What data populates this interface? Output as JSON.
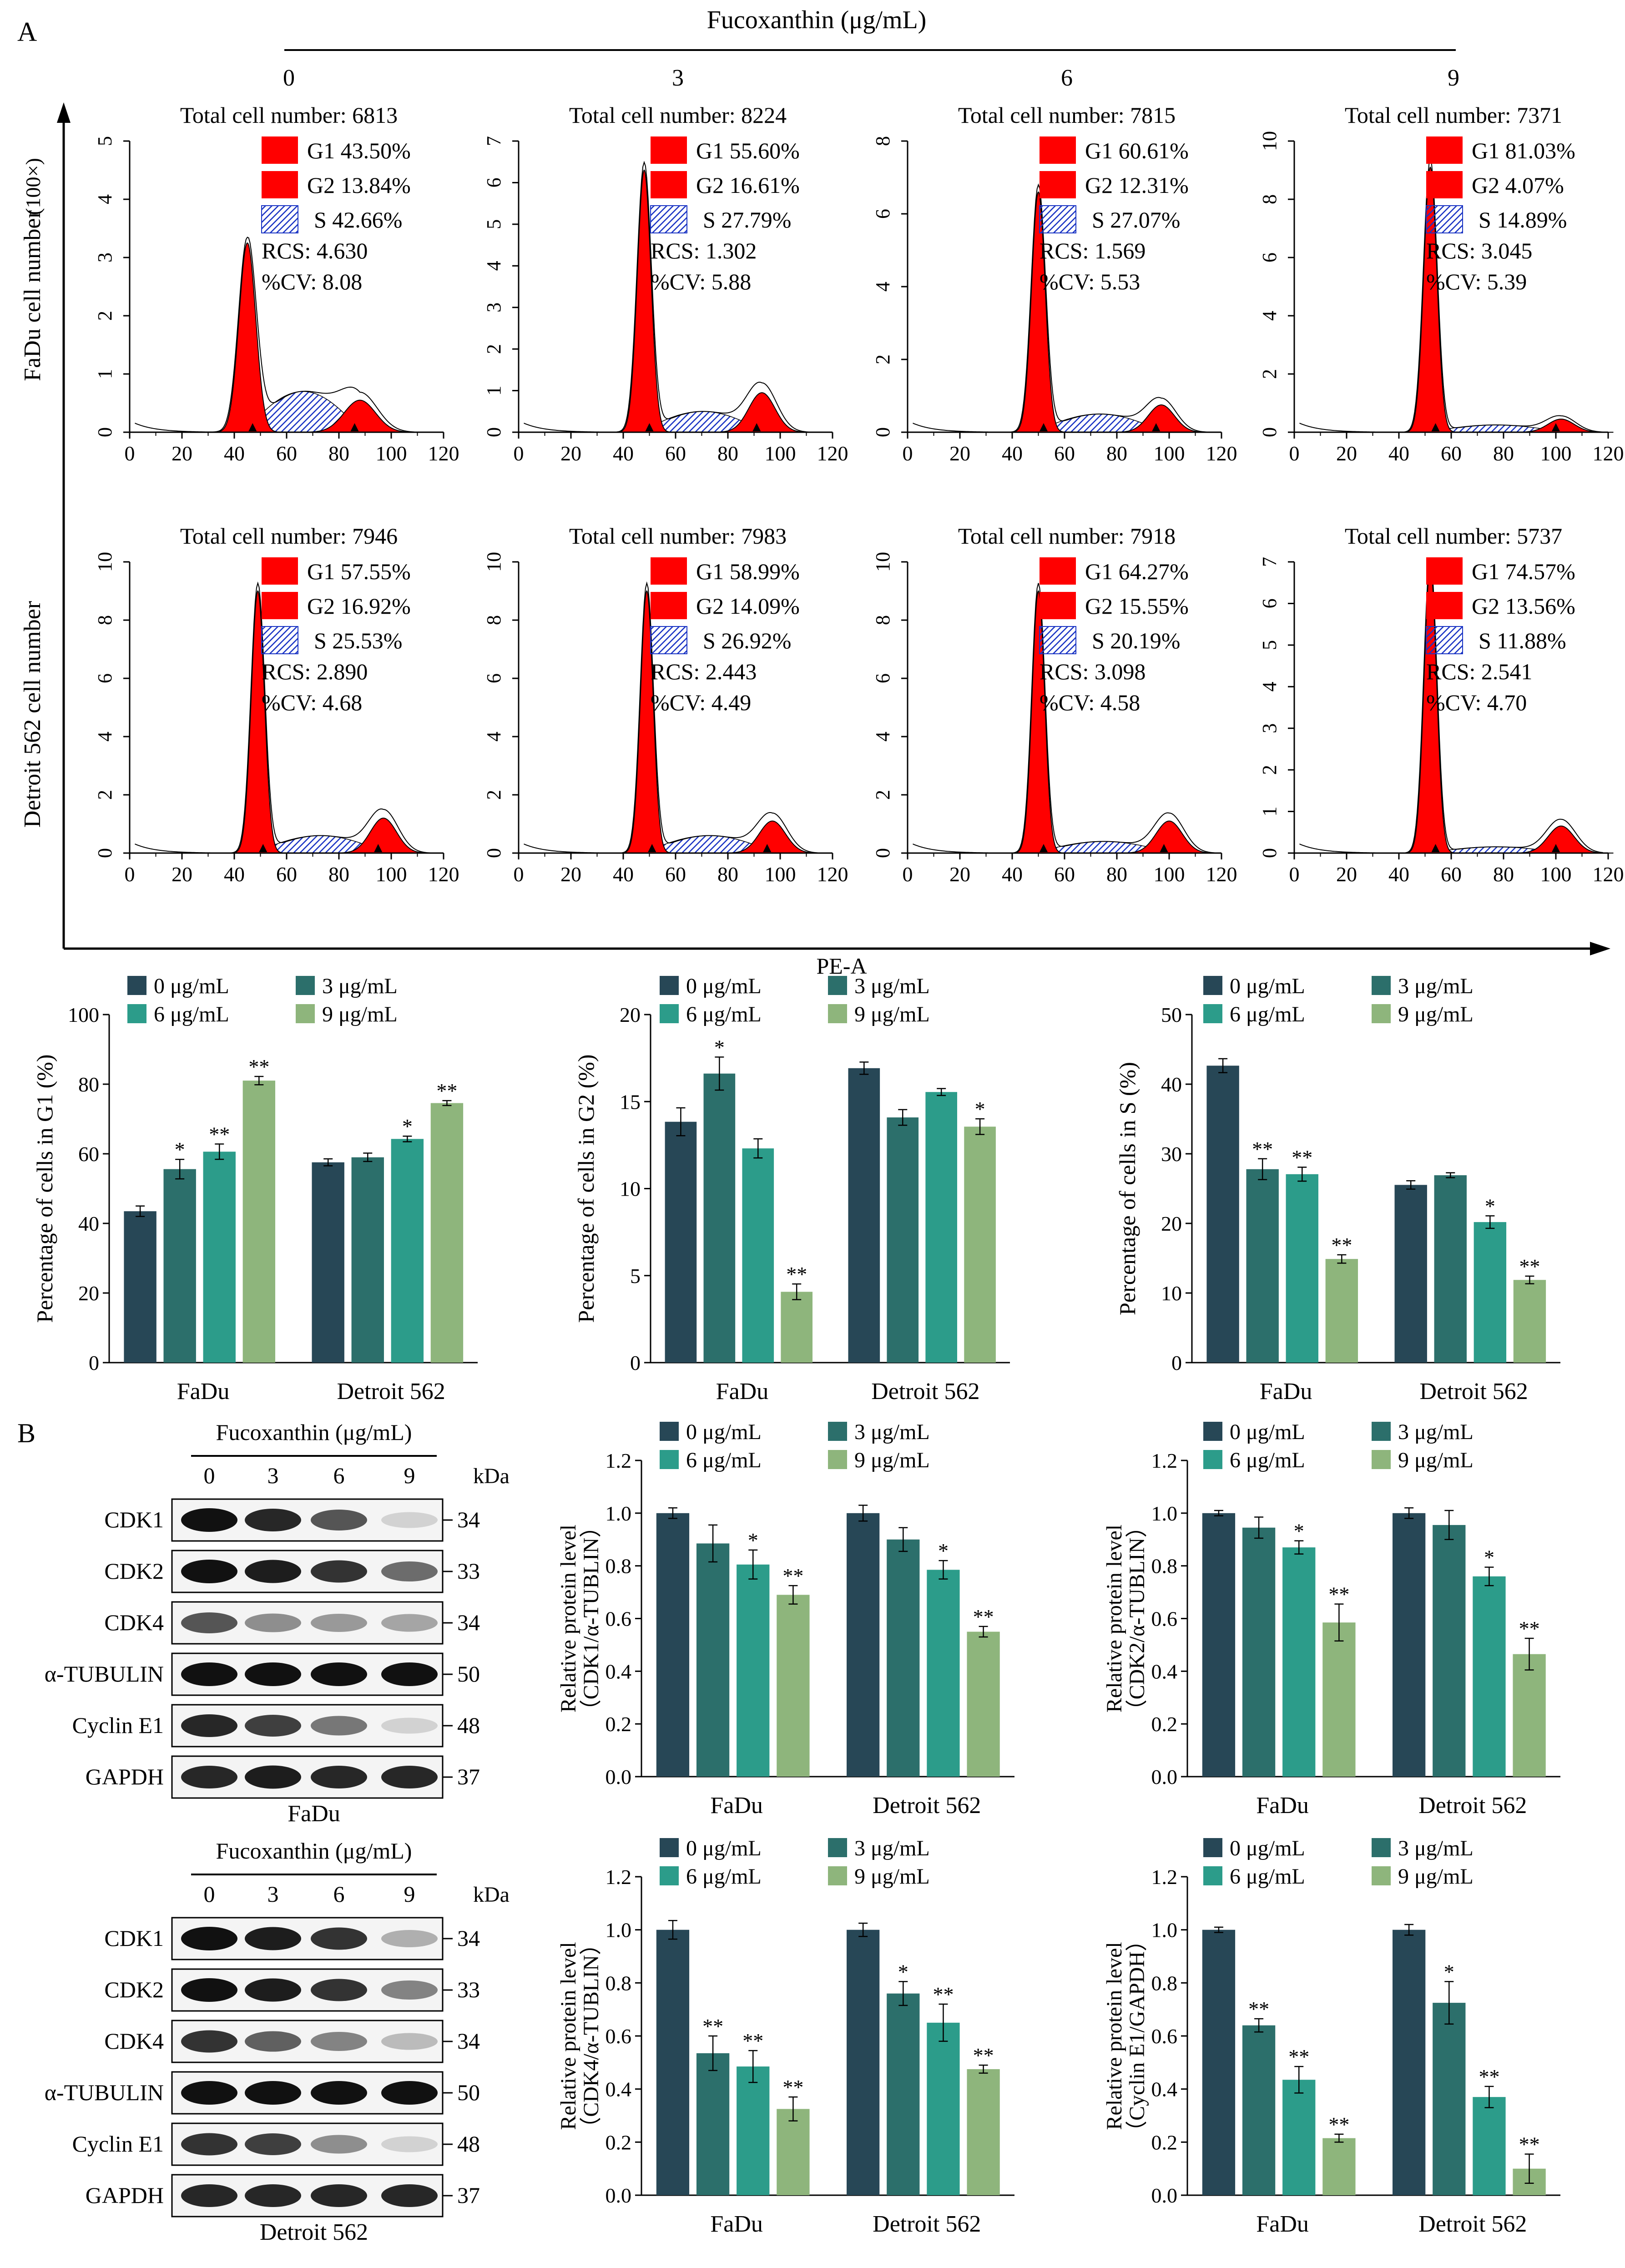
{
  "colors": {
    "c0": "#274756",
    "c3": "#2c6f6b",
    "c6": "#2c9c8a",
    "c9": "#8eb57c",
    "peak": "#ff0000",
    "s_hatch": "#1a34c4"
  },
  "panel_a": {
    "label": "A",
    "fucoxanthin_label": "Fucoxanthin (μg/mL)",
    "concentrations": [
      "0",
      "3",
      "6",
      "9"
    ],
    "row_labels": [
      "FaDu cell number",
      "Detroit 562 cell number"
    ],
    "scale_label": "(100×)",
    "xaxis_label": "PE-A",
    "phase_names": [
      "G1",
      "G2",
      "S"
    ],
    "histograms": [
      {
        "total": "Total cell number: 6813",
        "g1": "43.50%",
        "g2": "13.84%",
        "s": "42.66%",
        "rcs": "RCS: 4.630",
        "cv": "%CV: 8.08",
        "ymax": 5,
        "g1_pos": 45,
        "g1_h": 3.25,
        "g1_w": 3.2,
        "g2_pos": 88,
        "g2_h": 0.55,
        "g2_w": 6,
        "s_h": 0.7
      },
      {
        "total": "Total cell number: 8224",
        "g1": "55.60%",
        "g2": "16.61%",
        "s": "27.79%",
        "rcs": "RCS: 1.302",
        "cv": "%CV: 5.88",
        "ymax": 7,
        "g1_pos": 48,
        "g1_h": 6.3,
        "g1_w": 2.6,
        "g2_pos": 93,
        "g2_h": 0.95,
        "g2_w": 5,
        "s_h": 0.5
      },
      {
        "total": "Total cell number: 7815",
        "g1": "60.61%",
        "g2": "12.31%",
        "s": "27.07%",
        "rcs": "RCS: 1.569",
        "cv": "%CV: 5.53",
        "ymax": 8,
        "g1_pos": 50,
        "g1_h": 6.6,
        "g1_w": 2.6,
        "g2_pos": 97,
        "g2_h": 0.75,
        "g2_w": 5,
        "s_h": 0.5
      },
      {
        "total": "Total cell number: 7371",
        "g1": "81.03%",
        "g2": "4.07%",
        "s": "14.89%",
        "rcs": "RCS: 3.045",
        "cv": "%CV: 5.39",
        "ymax": 10,
        "g1_pos": 52,
        "g1_h": 9.1,
        "g1_w": 2.5,
        "g2_pos": 102,
        "g2_h": 0.45,
        "g2_w": 5,
        "s_h": 0.25
      },
      {
        "total": "Total cell number: 7946",
        "g1": "57.55%",
        "g2": "16.92%",
        "s": "25.53%",
        "rcs": "RCS: 2.890",
        "cv": "%CV: 4.68",
        "ymax": 10,
        "g1_pos": 49,
        "g1_h": 9.0,
        "g1_w": 2.5,
        "g2_pos": 97,
        "g2_h": 1.2,
        "g2_w": 5,
        "s_h": 0.6
      },
      {
        "total": "Total cell number: 7983",
        "g1": "58.99%",
        "g2": "14.09%",
        "s": "26.92%",
        "rcs": "RCS: 2.443",
        "cv": "%CV: 4.49",
        "ymax": 10,
        "g1_pos": 49,
        "g1_h": 9.0,
        "g1_w": 2.4,
        "g2_pos": 97,
        "g2_h": 1.1,
        "g2_w": 5,
        "s_h": 0.6
      },
      {
        "total": "Total cell number: 7918",
        "g1": "64.27%",
        "g2": "15.55%",
        "s": "20.19%",
        "rcs": "RCS: 3.098",
        "cv": "%CV: 4.58",
        "ymax": 10,
        "g1_pos": 50,
        "g1_h": 9.0,
        "g1_w": 2.4,
        "g2_pos": 100,
        "g2_h": 1.1,
        "g2_w": 5,
        "s_h": 0.4
      },
      {
        "total": "Total cell number: 5737",
        "g1": "74.57%",
        "g2": "13.56%",
        "s": "11.88%",
        "rcs": "RCS: 2.541",
        "cv": "%CV: 4.70",
        "ymax": 7,
        "g1_pos": 52,
        "g1_h": 6.9,
        "g1_w": 2.4,
        "g2_pos": 102,
        "g2_h": 0.65,
        "g2_w": 5,
        "s_h": 0.15
      }
    ]
  },
  "panel_b": {
    "label": "B",
    "blots": [
      {
        "caption": "FaDu",
        "title": "Fucoxanthin (μg/mL)",
        "lanes": [
          "0",
          "3",
          "6",
          "9"
        ],
        "kda_label": "kDa",
        "rows": [
          {
            "name": "CDK1",
            "kda": "34",
            "intensity": [
              1.0,
              0.9,
              0.7,
              0.15
            ]
          },
          {
            "name": "CDK2",
            "kda": "33",
            "intensity": [
              1.0,
              0.95,
              0.85,
              0.6
            ]
          },
          {
            "name": "CDK4",
            "kda": "34",
            "intensity": [
              0.7,
              0.45,
              0.4,
              0.35
            ]
          },
          {
            "name": "α-TUBULIN",
            "kda": "50",
            "intensity": [
              1.0,
              1.0,
              1.0,
              1.0
            ]
          },
          {
            "name": "Cyclin E1",
            "kda": "48",
            "intensity": [
              0.9,
              0.8,
              0.55,
              0.15
            ]
          },
          {
            "name": "GAPDH",
            "kda": "37",
            "intensity": [
              0.9,
              0.95,
              0.9,
              0.9
            ]
          }
        ]
      },
      {
        "caption": "Detroit 562",
        "title": "Fucoxanthin (μg/mL)",
        "lanes": [
          "0",
          "3",
          "6",
          "9"
        ],
        "kda_label": "kDa",
        "rows": [
          {
            "name": "CDK1",
            "kda": "34",
            "intensity": [
              1.0,
              0.95,
              0.85,
              0.3
            ]
          },
          {
            "name": "CDK2",
            "kda": "33",
            "intensity": [
              1.0,
              0.95,
              0.85,
              0.5
            ]
          },
          {
            "name": "CDK4",
            "kda": "34",
            "intensity": [
              0.85,
              0.65,
              0.5,
              0.25
            ]
          },
          {
            "name": "α-TUBULIN",
            "kda": "50",
            "intensity": [
              1.0,
              1.0,
              1.0,
              1.0
            ]
          },
          {
            "name": "Cyclin E1",
            "kda": "48",
            "intensity": [
              0.85,
              0.8,
              0.45,
              0.15
            ]
          },
          {
            "name": "GAPDH",
            "kda": "37",
            "intensity": [
              0.9,
              0.9,
              0.9,
              0.9
            ]
          }
        ]
      }
    ]
  },
  "chart_data": [
    {
      "type": "bar",
      "ylabel": "Percentage of cells in G1 (%)",
      "categories": [
        "FaDu",
        "Detroit 562"
      ],
      "ylim": [
        0,
        100
      ],
      "yticks": [
        0,
        20,
        40,
        60,
        80,
        100
      ],
      "series": [
        {
          "name": "0 μg/mL",
          "values": [
            43.5,
            57.55
          ],
          "errors": [
            1.5,
            1.0
          ],
          "sig": [
            "",
            ""
          ]
        },
        {
          "name": "3 μg/mL",
          "values": [
            55.6,
            58.99
          ],
          "errors": [
            2.8,
            1.2
          ],
          "sig": [
            "*",
            ""
          ]
        },
        {
          "name": "6 μg/mL",
          "values": [
            60.61,
            64.27
          ],
          "errors": [
            2.2,
            0.8
          ],
          "sig": [
            "**",
            "*"
          ]
        },
        {
          "name": "9 μg/mL",
          "values": [
            81.03,
            74.57
          ],
          "errors": [
            1.2,
            0.7
          ],
          "sig": [
            "**",
            "**"
          ]
        }
      ]
    },
    {
      "type": "bar",
      "ylabel": "Percentage of cells in G2 (%)",
      "categories": [
        "FaDu",
        "Detroit 562"
      ],
      "ylim": [
        0,
        20
      ],
      "yticks": [
        0,
        5,
        10,
        15,
        20
      ],
      "series": [
        {
          "name": "0 μg/mL",
          "values": [
            13.84,
            16.92
          ],
          "errors": [
            0.8,
            0.35
          ],
          "sig": [
            "",
            ""
          ]
        },
        {
          "name": "3 μg/mL",
          "values": [
            16.61,
            14.09
          ],
          "errors": [
            0.95,
            0.45
          ],
          "sig": [
            "*",
            ""
          ]
        },
        {
          "name": "6 μg/mL",
          "values": [
            12.31,
            15.55
          ],
          "errors": [
            0.55,
            0.2
          ],
          "sig": [
            "",
            ""
          ]
        },
        {
          "name": "9 μg/mL",
          "values": [
            4.07,
            13.56
          ],
          "errors": [
            0.45,
            0.45
          ],
          "sig": [
            "**",
            "*"
          ]
        }
      ]
    },
    {
      "type": "bar",
      "ylabel": "Percentage of cells in S (%)",
      "categories": [
        "FaDu",
        "Detroit 562"
      ],
      "ylim": [
        0,
        50
      ],
      "yticks": [
        0,
        10,
        20,
        30,
        40,
        50
      ],
      "series": [
        {
          "name": "0 μg/mL",
          "values": [
            42.66,
            25.53
          ],
          "errors": [
            1.0,
            0.6
          ],
          "sig": [
            "",
            ""
          ]
        },
        {
          "name": "3 μg/mL",
          "values": [
            27.79,
            26.92
          ],
          "errors": [
            1.5,
            0.35
          ],
          "sig": [
            "**",
            ""
          ]
        },
        {
          "name": "6 μg/mL",
          "values": [
            27.07,
            20.19
          ],
          "errors": [
            1.0,
            0.9
          ],
          "sig": [
            "**",
            "*"
          ]
        },
        {
          "name": "9 μg/mL",
          "values": [
            14.89,
            11.88
          ],
          "errors": [
            0.6,
            0.55
          ],
          "sig": [
            "**",
            "**"
          ]
        }
      ]
    },
    {
      "type": "bar",
      "ylabel": "Relative protein  level",
      "ylabel2": "（CDK1/α-TUBLIN）",
      "categories": [
        "FaDu",
        "Detroit 562"
      ],
      "ylim": [
        0,
        1.2
      ],
      "yticks": [
        0,
        0.2,
        0.4,
        0.6,
        0.8,
        1.0,
        1.2
      ],
      "series": [
        {
          "name": "0 μg/mL",
          "values": [
            1.0,
            1.0
          ],
          "errors": [
            0.02,
            0.03
          ],
          "sig": [
            "",
            ""
          ]
        },
        {
          "name": "3 μg/mL",
          "values": [
            0.885,
            0.9
          ],
          "errors": [
            0.07,
            0.045
          ],
          "sig": [
            "",
            ""
          ]
        },
        {
          "name": "6 μg/mL",
          "values": [
            0.805,
            0.785
          ],
          "errors": [
            0.055,
            0.035
          ],
          "sig": [
            "*",
            "*"
          ]
        },
        {
          "name": "9 μg/mL",
          "values": [
            0.69,
            0.55
          ],
          "errors": [
            0.035,
            0.02
          ],
          "sig": [
            "**",
            "**"
          ]
        }
      ]
    },
    {
      "type": "bar",
      "ylabel": "Relative protein  level",
      "ylabel2": "（CDK2/α-TUBLIN）",
      "categories": [
        "FaDu",
        "Detroit 562"
      ],
      "ylim": [
        0,
        1.2
      ],
      "yticks": [
        0,
        0.2,
        0.4,
        0.6,
        0.8,
        1.0,
        1.2
      ],
      "series": [
        {
          "name": "0 μg/mL",
          "values": [
            1.0,
            1.0
          ],
          "errors": [
            0.01,
            0.02
          ],
          "sig": [
            "",
            ""
          ]
        },
        {
          "name": "3 μg/mL",
          "values": [
            0.945,
            0.955
          ],
          "errors": [
            0.04,
            0.055
          ],
          "sig": [
            "",
            ""
          ]
        },
        {
          "name": "6 μg/mL",
          "values": [
            0.87,
            0.76
          ],
          "errors": [
            0.025,
            0.035
          ],
          "sig": [
            "*",
            "*"
          ]
        },
        {
          "name": "9 μg/mL",
          "values": [
            0.585,
            0.465
          ],
          "errors": [
            0.07,
            0.06
          ],
          "sig": [
            "**",
            "**"
          ]
        }
      ]
    },
    {
      "type": "bar",
      "ylabel": "Relative protein  level",
      "ylabel2": "（CDK4/α-TUBLIN）",
      "categories": [
        "FaDu",
        "Detroit 562"
      ],
      "ylim": [
        0,
        1.2
      ],
      "yticks": [
        0,
        0.2,
        0.4,
        0.6,
        0.8,
        1.0,
        1.2
      ],
      "series": [
        {
          "name": "0 μg/mL",
          "values": [
            1.0,
            1.0
          ],
          "errors": [
            0.035,
            0.025
          ],
          "sig": [
            "",
            ""
          ]
        },
        {
          "name": "3 μg/mL",
          "values": [
            0.535,
            0.76
          ],
          "errors": [
            0.065,
            0.045
          ],
          "sig": [
            "**",
            "*"
          ]
        },
        {
          "name": "6 μg/mL",
          "values": [
            0.485,
            0.65
          ],
          "errors": [
            0.06,
            0.07
          ],
          "sig": [
            "**",
            "**"
          ]
        },
        {
          "name": "9 μg/mL",
          "values": [
            0.325,
            0.475
          ],
          "errors": [
            0.045,
            0.015
          ],
          "sig": [
            "**",
            "**"
          ]
        }
      ]
    },
    {
      "type": "bar",
      "ylabel": "Relative protein  level",
      "ylabel2": "（Cyclin E1/GAPDH）",
      "categories": [
        "FaDu",
        "Detroit 562"
      ],
      "ylim": [
        0,
        1.2
      ],
      "yticks": [
        0,
        0.2,
        0.4,
        0.6,
        0.8,
        1.0,
        1.2
      ],
      "series": [
        {
          "name": "0 μg/mL",
          "values": [
            1.0,
            1.0
          ],
          "errors": [
            0.01,
            0.02
          ],
          "sig": [
            "",
            ""
          ]
        },
        {
          "name": "3 μg/mL",
          "values": [
            0.64,
            0.725
          ],
          "errors": [
            0.025,
            0.08
          ],
          "sig": [
            "**",
            "*"
          ]
        },
        {
          "name": "6 μg/mL",
          "values": [
            0.435,
            0.37
          ],
          "errors": [
            0.05,
            0.04
          ],
          "sig": [
            "**",
            "**"
          ]
        },
        {
          "name": "9 μg/mL",
          "values": [
            0.215,
            0.1
          ],
          "errors": [
            0.015,
            0.055
          ],
          "sig": [
            "**",
            "**"
          ]
        }
      ]
    }
  ]
}
